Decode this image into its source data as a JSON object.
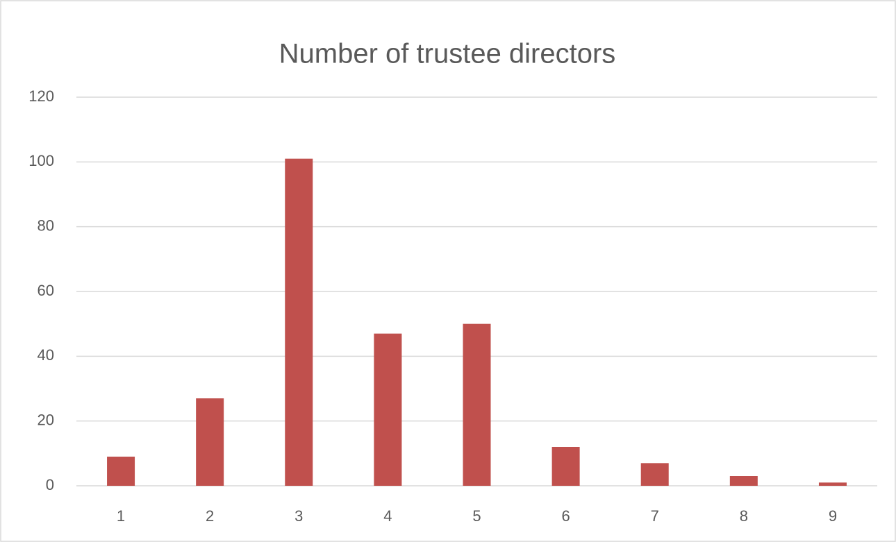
{
  "chart_data": {
    "type": "bar",
    "title": "Number of trustee directors",
    "categories": [
      "1",
      "2",
      "3",
      "4",
      "5",
      "6",
      "7",
      "8",
      "9"
    ],
    "values": [
      9,
      27,
      101,
      47,
      50,
      12,
      7,
      3,
      1
    ],
    "color": "#c0504d",
    "ylim": [
      0,
      120
    ],
    "yticks": [
      0,
      20,
      40,
      60,
      80,
      100,
      120
    ],
    "grid": true
  }
}
